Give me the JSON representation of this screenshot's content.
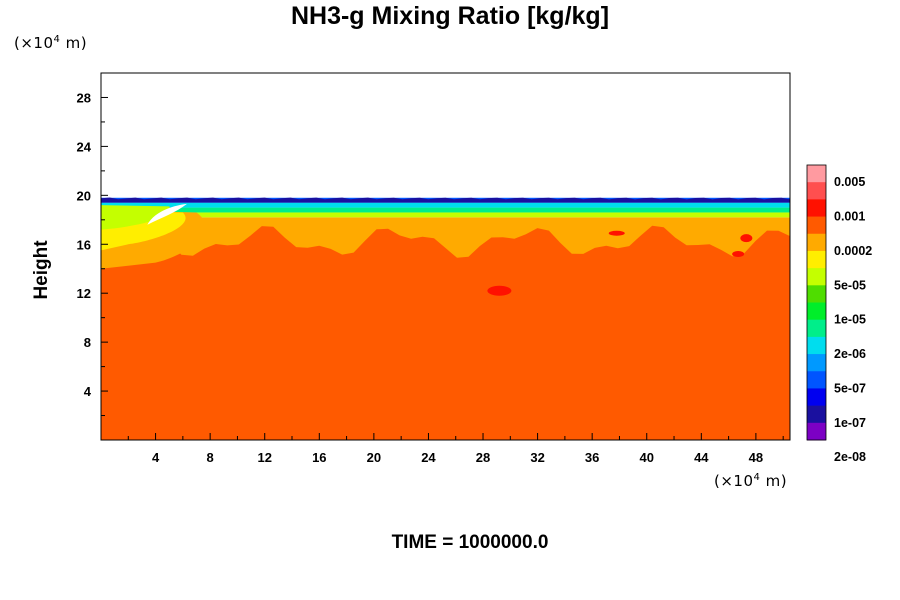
{
  "chart_data": {
    "type": "heatmap",
    "title": "NH3-g Mixing Ratio [kg/kg]",
    "ylabel": "Height",
    "xlabel": "",
    "x_unit": {
      "prefix": "(×10",
      "exp": "4",
      "suffix": " m)"
    },
    "y_unit": {
      "prefix": "(×10",
      "exp": "4",
      "suffix": " m)"
    },
    "xlim": [
      0,
      50.5
    ],
    "ylim": [
      0,
      30
    ],
    "x_ticks": [
      4,
      8,
      12,
      16,
      20,
      24,
      28,
      32,
      36,
      40,
      44,
      48
    ],
    "y_ticks": [
      4,
      8,
      12,
      16,
      20,
      24,
      28
    ],
    "footer": "TIME = 1000000.0",
    "colorbar": {
      "colors": [
        "#ff9aa0",
        "#ff4f4f",
        "#ff1100",
        "#ff5a00",
        "#ffaa00",
        "#ffee00",
        "#c4ff00",
        "#4fdd00",
        "#00ee2a",
        "#00ee8a",
        "#00ddee",
        "#0099ff",
        "#0055ff",
        "#0000f0",
        "#1a109f",
        "#7c00c4"
      ],
      "labels": [
        "0.005",
        "0.001",
        "0.0002",
        "5e-05",
        "1e-05",
        "2e-06",
        "5e-07",
        "1e-07",
        "2e-08"
      ]
    },
    "field": {
      "background_value_color": "#ff5a00",
      "top_of_layer_height": 19.8,
      "description_bands": [
        {
          "from": 0,
          "to": 17.8,
          "color": "#ff5a00"
        },
        {
          "from": 17.8,
          "to": 18.2,
          "color": "#ffaa00"
        },
        {
          "from": 18.2,
          "to": 18.6,
          "color": "#c4ff00"
        },
        {
          "from": 18.6,
          "to": 19.0,
          "color": "#00ee8a"
        },
        {
          "from": 19.0,
          "to": 19.4,
          "color": "#00ddee"
        },
        {
          "from": 19.4,
          "to": 19.8,
          "color": "#0055ff"
        }
      ]
    }
  }
}
